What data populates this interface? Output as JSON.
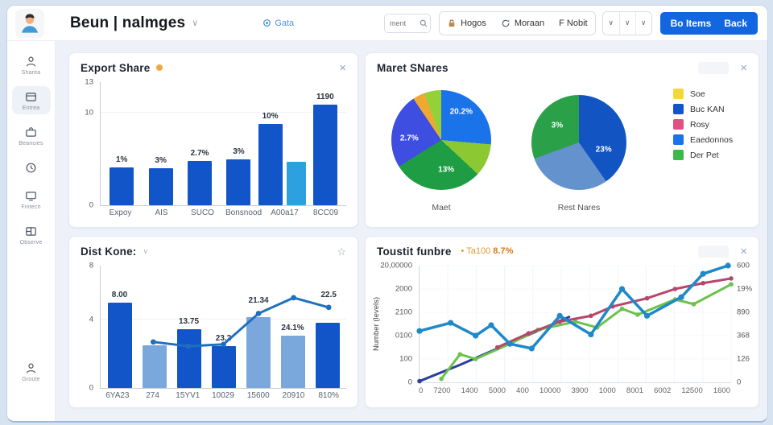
{
  "app": {
    "title": "Beun | nalmges",
    "header": {
      "nav_link_label": "Gata",
      "search_placeholder": "ment",
      "toolbar_buttons": [
        {
          "icon": "lock-icon",
          "label": "Hogos"
        },
        {
          "icon": "refresh-icon",
          "label": "Moraan"
        },
        {
          "icon": "",
          "label": "F Nobit"
        }
      ],
      "dropdown_glyphs": [
        "∨",
        "∨",
        "∨"
      ],
      "primary_button": {
        "label_left": "Bo Items",
        "label_right": "Back"
      }
    },
    "sidebar": {
      "items": [
        {
          "icon": "user-icon",
          "label": "Sharea",
          "active": false
        },
        {
          "icon": "card-icon",
          "label": "Entrea",
          "active": true
        },
        {
          "icon": "briefcase-icon",
          "label": "Beancies",
          "active": false
        },
        {
          "icon": "clock-icon",
          "label": "",
          "active": false
        },
        {
          "icon": "monitor-icon",
          "label": "Fintech",
          "active": false
        },
        {
          "icon": "layout-icon",
          "label": "Observe",
          "active": false
        }
      ],
      "bottom_item": {
        "icon": "user-icon",
        "label": "Groute"
      }
    }
  },
  "glyphs": {
    "chevron": "∨",
    "close": "×",
    "star": "☆"
  },
  "colors": {
    "accent_blue": "#1266e0",
    "bar_dark": "#1155c8",
    "bar_light_cyan": "#2da0e0",
    "bar_light_steel": "#7aa8dc",
    "orange_badge": "#f0a93c"
  },
  "panels": {
    "export_share": {
      "title": "Export Share"
    },
    "market_shares": {
      "title": "Maret SNares",
      "pie1_caption": "Maet",
      "pie2_caption": "Rest Nares",
      "legend": [
        {
          "color": "#f2d838",
          "label": "Soe"
        },
        {
          "color": "#1155c8",
          "label": "Buc KAN"
        },
        {
          "color": "#e05080",
          "label": "Rosy"
        },
        {
          "color": "#1a73e8",
          "label": "Eaedonnos"
        },
        {
          "color": "#3cb84c",
          "label": "Der Pet"
        }
      ]
    },
    "dist_kone": {
      "title": "Dist Kone:"
    },
    "toustit": {
      "title": "Toustit funbre",
      "subtitle_prefix": "• Ta100",
      "subtitle_value": "8.7%"
    }
  },
  "chart_data": [
    {
      "id": "p1",
      "type": "bar",
      "title": "Export Share",
      "y_ticks": [
        {
          "label": "13",
          "f": 1
        },
        {
          "label": "10",
          "f": 0.75
        },
        {
          "label": "0",
          "f": 0
        }
      ],
      "groups": [
        {
          "category": "Expoy",
          "bars": [
            {
              "v": 0.31,
              "label": "1%",
              "c": "dark"
            }
          ]
        },
        {
          "category": "AIS",
          "bars": [
            {
              "v": 0.3,
              "label": "3%",
              "c": "dark"
            }
          ]
        },
        {
          "category": "SUCO",
          "bars": [
            {
              "v": 0.36,
              "label": "2.7%",
              "c": "dark"
            }
          ]
        },
        {
          "category": "Bonsnood",
          "bars": [
            {
              "v": 0.37,
              "label": "3%",
              "c": "dark"
            }
          ]
        },
        {
          "category": "A00a17",
          "bars": [
            {
              "v": 0.66,
              "label": "10%",
              "c": "dark"
            },
            {
              "v": 0.35,
              "label": "",
              "c": "light"
            }
          ]
        },
        {
          "category": "8CC09",
          "bars": [
            {
              "v": 0.82,
              "label": "1190",
              "c": "dark"
            }
          ]
        }
      ]
    },
    {
      "id": "pies",
      "type": "pie",
      "title": "Maret SNares",
      "pie1": {
        "caption": "Maet",
        "slices": [
          {
            "label": "20.2%",
            "deg": 95,
            "color": "#1a73e8",
            "pos": [
              70,
              22
            ]
          },
          {
            "deg": 38,
            "color": "#8bc832"
          },
          {
            "label": "13%",
            "deg": 105,
            "color": "#1f9d44",
            "pos": [
              55,
              80
            ]
          },
          {
            "label": "2.7%",
            "deg": 88,
            "color": "#3d4ee0",
            "pos": [
              18,
              48
            ]
          },
          {
            "deg": 14,
            "color": "#f0a830"
          },
          {
            "deg": 20,
            "color": "#94d038"
          }
        ]
      },
      "pie2": {
        "caption": "Rest Nares",
        "slices": [
          {
            "label": "23%",
            "deg": 145,
            "color": "#1254c2",
            "pos": [
              76,
              58
            ]
          },
          {
            "deg": 105,
            "color": "#6492cc"
          },
          {
            "label": "3%",
            "deg": 110,
            "color": "#2aa148",
            "pos": [
              27,
              32
            ]
          }
        ]
      }
    },
    {
      "id": "p3",
      "type": "bar-line",
      "title": "Dist Kone",
      "y_ticks": [
        {
          "label": "8",
          "f": 1
        },
        {
          "label": "4",
          "f": 0.56
        },
        {
          "label": "0",
          "f": 0
        }
      ],
      "groups": [
        {
          "category": "6YA23",
          "bars": [
            {
              "v": 0.7,
              "label": "8.00",
              "c": "dark"
            }
          ]
        },
        {
          "category": "274",
          "bars": [
            {
              "v": 0.35,
              "label": "",
              "c": "light"
            }
          ]
        },
        {
          "category": "15YV1",
          "bars": [
            {
              "v": 0.48,
              "label": "13.75",
              "c": "dark"
            }
          ]
        },
        {
          "category": "10029",
          "bars": [
            {
              "v": 0.34,
              "label": "23.2",
              "c": "dark"
            }
          ]
        },
        {
          "category": "15600",
          "bars": [
            {
              "v": 0.58,
              "label": "",
              "c": "light"
            }
          ]
        },
        {
          "category": "20910",
          "bars": [
            {
              "v": 0.43,
              "label": "24.1%",
              "c": "light"
            }
          ]
        },
        {
          "category": "810%",
          "bars": [
            {
              "v": 0.53,
              "label": "",
              "c": "dark"
            }
          ]
        }
      ],
      "line": {
        "color": "#1e6fc0",
        "slots": [
          1,
          2,
          3,
          4,
          5,
          6
        ],
        "y": [
          0.375,
          0.34,
          0.355,
          0.61,
          0.74,
          0.66
        ],
        "labels": [
          {
            "text": "21.34",
            "slot": 4,
            "f": 0.61
          },
          {
            "text": "22.5",
            "slot": 6,
            "f": 0.66
          }
        ]
      }
    },
    {
      "id": "p4",
      "type": "line",
      "title": "Toustit funbre",
      "ylabel": "Number (levels)",
      "left_ticks": [
        "20,00000",
        "2000",
        "2100",
        "0100",
        "100",
        "0"
      ],
      "right_ticks": [
        "600",
        "19%",
        "890",
        "368",
        "126",
        "0"
      ],
      "x_ticks": [
        "0",
        "7200",
        "1400",
        "5000",
        "400",
        "10000",
        "3900",
        "1000",
        "8001",
        "6002",
        "12500",
        "1600"
      ],
      "series": [
        {
          "name": "navy",
          "color": "#2b3f9e",
          "width": 3,
          "markers": "first",
          "x": [
            0,
            0.13,
            0.25,
            0.37,
            0.48
          ],
          "y": [
            0.01,
            0.15,
            0.29,
            0.43,
            0.56
          ]
        },
        {
          "name": "green",
          "color": "#6cc24a",
          "width": 3,
          "markers": "all",
          "x": [
            0.07,
            0.13,
            0.18,
            0.29,
            0.38,
            0.5,
            0.57,
            0.65,
            0.7,
            0.82,
            0.88,
            1
          ],
          "y": [
            0.03,
            0.24,
            0.2,
            0.33,
            0.45,
            0.52,
            0.47,
            0.63,
            0.58,
            0.71,
            0.67,
            0.84
          ]
        },
        {
          "name": "crimson",
          "color": "#b5476b",
          "width": 3,
          "markers": "all",
          "x": [
            0.25,
            0.35,
            0.45,
            0.55,
            0.62,
            0.73,
            0.82,
            0.91,
            1
          ],
          "y": [
            0.3,
            0.42,
            0.52,
            0.57,
            0.65,
            0.72,
            0.8,
            0.85,
            0.89
          ]
        },
        {
          "name": "teal",
          "color": "#1f88c8",
          "width": 3.5,
          "markers": "all",
          "x": [
            0,
            0.1,
            0.18,
            0.23,
            0.29,
            0.36,
            0.45,
            0.55,
            0.65,
            0.73,
            0.84,
            0.91,
            0.99
          ],
          "y": [
            0.44,
            0.51,
            0.4,
            0.49,
            0.33,
            0.29,
            0.57,
            0.41,
            0.8,
            0.57,
            0.73,
            0.93,
            1
          ]
        }
      ]
    }
  ]
}
